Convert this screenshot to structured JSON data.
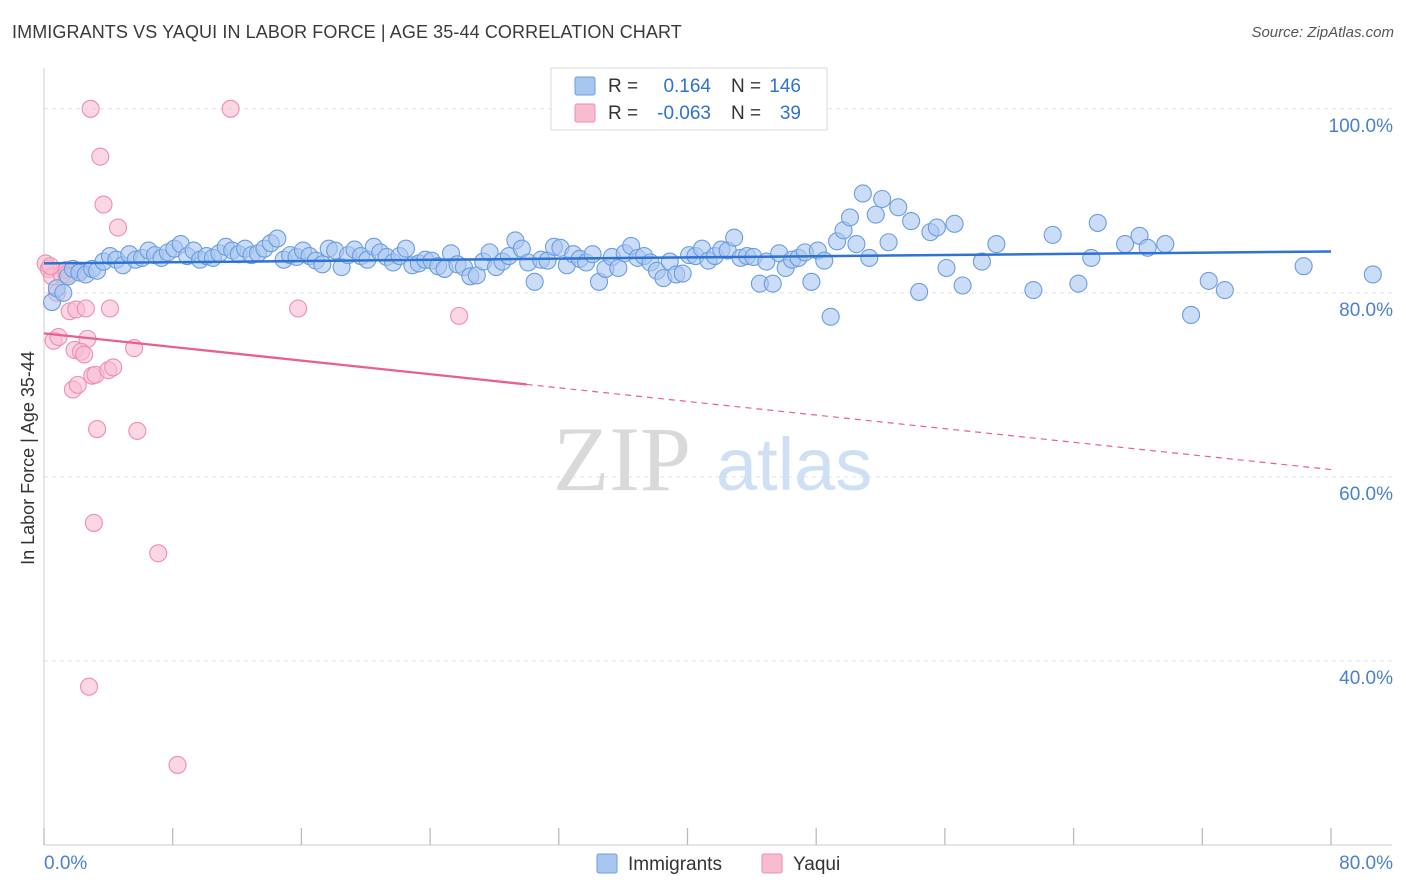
{
  "header": {
    "title": "IMMIGRANTS VS YAQUI IN LABOR FORCE | AGE 35-44 CORRELATION CHART",
    "source": "Source: ZipAtlas.com"
  },
  "watermark": {
    "zip": "ZIP",
    "atlas": "atlas"
  },
  "legend_box": {
    "rows": [
      {
        "r_label": "R =",
        "r_value": "0.164",
        "n_label": "N =",
        "n_value": "146",
        "color": "#6a9de0"
      },
      {
        "r_label": "R =",
        "r_value": "-0.063",
        "n_label": "N =",
        "n_value": "39",
        "color": "#ee8db0"
      }
    ]
  },
  "bottom_legend": [
    {
      "label": "Immigrants",
      "color": "#6a9de0"
    },
    {
      "label": "Yaqui",
      "color": "#ee8db0"
    }
  ],
  "colors": {
    "blue_fill": "#a8c6f0",
    "blue_stroke": "#6a9de0",
    "blue_line": "#2e72d2",
    "pink_fill": "#f7bcd0",
    "pink_stroke": "#ee8db0",
    "pink_line": "#e8608e",
    "grid": "#dde3ea",
    "tick_label": "#4a80cf"
  },
  "chart_data": {
    "type": "scatter",
    "title": "IMMIGRANTS VS YAQUI IN LABOR FORCE | AGE 35-44 CORRELATION CHART",
    "xlabel": "",
    "ylabel": "In Labor Force | Age 35-44",
    "xlim": [
      0,
      80
    ],
    "ylim": [
      20,
      104
    ],
    "x_tick_labels": [
      "0.0%",
      "80.0%"
    ],
    "y_ticks": [
      40,
      60,
      80,
      100
    ],
    "y_tick_labels": [
      "40.0%",
      "60.0%",
      "80.0%",
      "100.0%"
    ],
    "grid": true,
    "legend_position": "top-center",
    "series": [
      {
        "name": "Immigrants",
        "R": 0.164,
        "N": 146,
        "trend": {
          "x": [
            0,
            80
          ],
          "y": [
            83.2,
            84.5
          ],
          "style": "solid"
        },
        "points": [
          [
            0.5,
            79.0
          ],
          [
            0.8,
            80.5
          ],
          [
            1.2,
            80.0
          ],
          [
            1.5,
            81.8
          ],
          [
            1.8,
            82.6
          ],
          [
            2.2,
            82.2
          ],
          [
            2.6,
            82.0
          ],
          [
            3.0,
            82.6
          ],
          [
            3.3,
            82.4
          ],
          [
            3.7,
            83.4
          ],
          [
            4.1,
            84.0
          ],
          [
            4.5,
            83.6
          ],
          [
            4.9,
            83.0
          ],
          [
            5.3,
            84.2
          ],
          [
            5.7,
            83.6
          ],
          [
            6.1,
            83.8
          ],
          [
            6.5,
            84.6
          ],
          [
            6.9,
            84.1
          ],
          [
            7.3,
            83.8
          ],
          [
            7.7,
            84.4
          ],
          [
            8.1,
            84.8
          ],
          [
            8.5,
            85.3
          ],
          [
            8.9,
            84.0
          ],
          [
            9.3,
            84.6
          ],
          [
            9.7,
            83.6
          ],
          [
            10.1,
            84.0
          ],
          [
            10.5,
            83.8
          ],
          [
            10.9,
            84.3
          ],
          [
            11.3,
            85.0
          ],
          [
            11.7,
            84.6
          ],
          [
            12.1,
            84.2
          ],
          [
            12.5,
            84.8
          ],
          [
            12.9,
            84.1
          ],
          [
            13.3,
            84.3
          ],
          [
            13.7,
            84.8
          ],
          [
            14.1,
            85.4
          ],
          [
            14.5,
            85.9
          ],
          [
            14.9,
            83.6
          ],
          [
            15.3,
            84.1
          ],
          [
            15.7,
            83.9
          ],
          [
            16.1,
            84.6
          ],
          [
            16.5,
            84.0
          ],
          [
            16.9,
            83.5
          ],
          [
            17.3,
            83.1
          ],
          [
            17.7,
            84.8
          ],
          [
            18.1,
            84.6
          ],
          [
            18.5,
            82.8
          ],
          [
            18.9,
            84.1
          ],
          [
            19.3,
            84.7
          ],
          [
            19.7,
            84.0
          ],
          [
            20.1,
            83.6
          ],
          [
            20.5,
            85.0
          ],
          [
            20.9,
            84.4
          ],
          [
            21.3,
            83.9
          ],
          [
            21.7,
            83.3
          ],
          [
            22.1,
            84.0
          ],
          [
            22.5,
            84.8
          ],
          [
            22.9,
            83.0
          ],
          [
            23.3,
            83.2
          ],
          [
            23.7,
            83.6
          ],
          [
            24.1,
            83.5
          ],
          [
            24.5,
            82.9
          ],
          [
            24.9,
            82.6
          ],
          [
            25.3,
            84.3
          ],
          [
            25.7,
            83.1
          ],
          [
            26.1,
            82.8
          ],
          [
            26.5,
            81.8
          ],
          [
            26.9,
            81.9
          ],
          [
            27.3,
            83.4
          ],
          [
            27.7,
            84.4
          ],
          [
            28.1,
            82.8
          ],
          [
            28.5,
            83.4
          ],
          [
            28.9,
            84.0
          ],
          [
            29.3,
            85.7
          ],
          [
            29.7,
            84.8
          ],
          [
            30.1,
            83.3
          ],
          [
            30.5,
            81.2
          ],
          [
            30.9,
            83.6
          ],
          [
            31.3,
            83.5
          ],
          [
            31.7,
            85.0
          ],
          [
            32.1,
            84.9
          ],
          [
            32.5,
            83.0
          ],
          [
            32.9,
            84.2
          ],
          [
            33.3,
            83.7
          ],
          [
            33.7,
            83.3
          ],
          [
            34.1,
            84.2
          ],
          [
            34.5,
            81.2
          ],
          [
            34.9,
            82.6
          ],
          [
            35.3,
            83.9
          ],
          [
            35.7,
            82.7
          ],
          [
            36.1,
            84.3
          ],
          [
            36.5,
            85.1
          ],
          [
            36.9,
            83.8
          ],
          [
            37.3,
            84.0
          ],
          [
            37.7,
            83.3
          ],
          [
            38.1,
            82.4
          ],
          [
            38.5,
            81.6
          ],
          [
            38.9,
            83.4
          ],
          [
            39.3,
            82.0
          ],
          [
            39.7,
            82.1
          ],
          [
            40.1,
            84.1
          ],
          [
            40.5,
            84.0
          ],
          [
            40.9,
            84.8
          ],
          [
            41.3,
            83.5
          ],
          [
            41.7,
            84.0
          ],
          [
            42.1,
            84.7
          ],
          [
            42.5,
            84.6
          ],
          [
            42.9,
            86.0
          ],
          [
            43.3,
            83.8
          ],
          [
            43.7,
            84.0
          ],
          [
            44.1,
            83.9
          ],
          [
            44.5,
            81.0
          ],
          [
            44.9,
            83.4
          ],
          [
            45.3,
            81.0
          ],
          [
            45.7,
            84.3
          ],
          [
            46.1,
            82.7
          ],
          [
            46.5,
            83.6
          ],
          [
            46.9,
            83.8
          ],
          [
            47.3,
            84.4
          ],
          [
            47.7,
            81.2
          ],
          [
            48.1,
            84.6
          ],
          [
            48.5,
            83.5
          ],
          [
            48.9,
            77.4
          ],
          [
            49.3,
            85.6
          ],
          [
            49.7,
            86.8
          ],
          [
            50.1,
            88.2
          ],
          [
            50.5,
            85.3
          ],
          [
            50.9,
            90.8
          ],
          [
            51.3,
            83.8
          ],
          [
            51.7,
            88.5
          ],
          [
            52.1,
            90.2
          ],
          [
            52.5,
            85.5
          ],
          [
            53.1,
            89.3
          ],
          [
            53.9,
            87.8
          ],
          [
            54.4,
            80.1
          ],
          [
            55.1,
            86.6
          ],
          [
            55.5,
            87.1
          ],
          [
            56.1,
            82.7
          ],
          [
            56.6,
            87.5
          ],
          [
            57.1,
            80.8
          ],
          [
            58.3,
            83.4
          ],
          [
            59.2,
            85.3
          ],
          [
            61.5,
            80.3
          ],
          [
            62.7,
            86.3
          ],
          [
            64.3,
            81.0
          ],
          [
            65.1,
            83.8
          ],
          [
            65.5,
            87.6
          ],
          [
            67.2,
            85.3
          ],
          [
            68.1,
            86.2
          ],
          [
            68.6,
            84.9
          ],
          [
            69.7,
            85.3
          ],
          [
            71.3,
            77.6
          ],
          [
            72.4,
            81.3
          ],
          [
            73.4,
            80.3
          ],
          [
            78.3,
            82.9
          ],
          [
            82.6,
            82.0
          ]
        ]
      },
      {
        "name": "Yaqui",
        "R": -0.063,
        "N": 39,
        "trend": {
          "x": [
            0,
            80
          ],
          "y": [
            75.6,
            60.8
          ],
          "style": "solid-then-dashed",
          "solid_until_x": 30
        },
        "points": [
          [
            0.1,
            83.2
          ],
          [
            0.3,
            82.6
          ],
          [
            0.5,
            81.8
          ],
          [
            0.8,
            80.0
          ],
          [
            1.1,
            82.0
          ],
          [
            1.4,
            82.5
          ],
          [
            0.6,
            74.8
          ],
          [
            0.9,
            75.2
          ],
          [
            1.6,
            78.0
          ],
          [
            2.0,
            78.2
          ],
          [
            2.6,
            78.3
          ],
          [
            2.7,
            75.0
          ],
          [
            1.9,
            73.8
          ],
          [
            2.3,
            73.6
          ],
          [
            2.5,
            73.3
          ],
          [
            3.0,
            71.0
          ],
          [
            3.2,
            71.1
          ],
          [
            4.0,
            71.6
          ],
          [
            4.3,
            71.9
          ],
          [
            5.6,
            74.0
          ],
          [
            1.8,
            69.5
          ],
          [
            2.1,
            70.0
          ],
          [
            4.1,
            78.3
          ],
          [
            15.8,
            78.3
          ],
          [
            25.8,
            77.5
          ],
          [
            3.3,
            65.2
          ],
          [
            5.8,
            65.0
          ],
          [
            3.1,
            55.0
          ],
          [
            7.1,
            51.7
          ],
          [
            2.8,
            37.2
          ],
          [
            8.3,
            28.7
          ],
          [
            2.9,
            100.0
          ],
          [
            11.6,
            100.0
          ],
          [
            3.5,
            94.8
          ],
          [
            3.7,
            89.6
          ],
          [
            4.6,
            87.1
          ],
          [
            1.4,
            82.0
          ],
          [
            2.2,
            82.4
          ],
          [
            0.4,
            82.9
          ]
        ]
      }
    ]
  }
}
